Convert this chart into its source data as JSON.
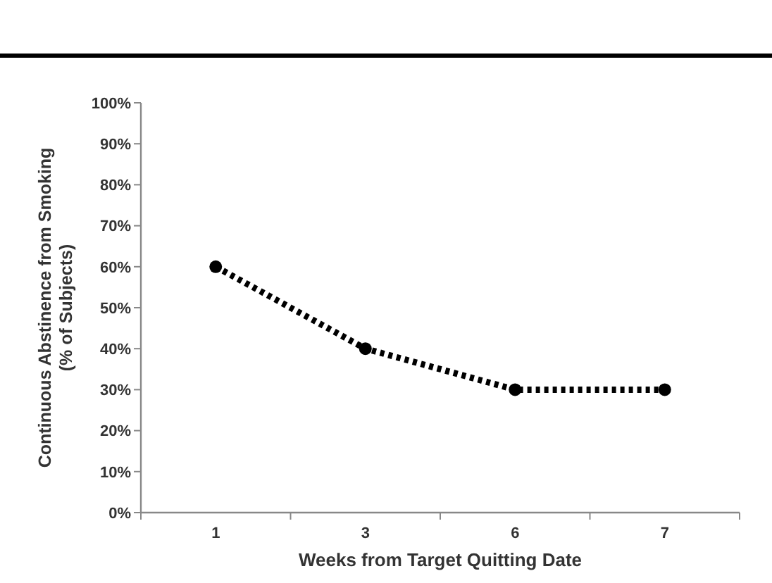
{
  "chart_data": {
    "type": "line",
    "xlabel": "Weeks from Target Quitting Date",
    "ylabel": "Continuous Abstinence from Smoking\n(% of Subjects)",
    "categories": [
      "1",
      "3",
      "6",
      "7"
    ],
    "series": [
      {
        "color": "#000000",
        "values": [
          60,
          40,
          30,
          30
        ]
      }
    ],
    "ylim": [
      0,
      100
    ],
    "yticks": [
      {
        "value": 0,
        "label": "0%"
      },
      {
        "value": 10,
        "label": "10%"
      },
      {
        "value": 20,
        "label": "20%"
      },
      {
        "value": 30,
        "label": "30%"
      },
      {
        "value": 40,
        "label": "40%"
      },
      {
        "value": 50,
        "label": "50%"
      },
      {
        "value": 60,
        "label": "60%"
      },
      {
        "value": 70,
        "label": "70%"
      },
      {
        "value": 80,
        "label": "80%"
      },
      {
        "value": 90,
        "label": "90%"
      },
      {
        "value": 100,
        "label": "100%"
      }
    ],
    "marker": "circle",
    "line_style": "dotted",
    "grid": false
  }
}
